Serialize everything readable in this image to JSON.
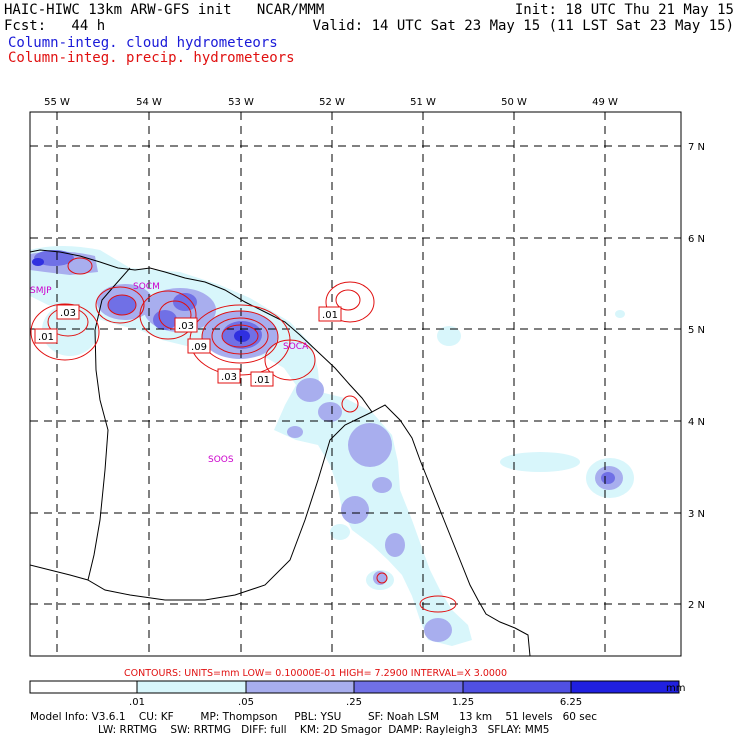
{
  "header": {
    "line1_left": "HAIC-HIWC 13km ARW-GFS init   NCAR/MMM",
    "line1_right": "Init: 18 UTC Thu 21 May 15",
    "line2_left": "Fcst:   44 h",
    "line2_right": "Valid: 14 UTC Sat 23 May 15 (11 LST Sat 23 May 15)",
    "field1": "Column-integ. cloud hydrometeors",
    "field2": "Column-integ. precip. hydrometeors",
    "field1_color": "#1a1ad8",
    "field2_color": "#e01010"
  },
  "map": {
    "lon_labels": [
      "55 W",
      "54 W",
      "53 W",
      "52 W",
      "51 W",
      "50 W",
      "49 W"
    ],
    "lat_labels": [
      "7 N",
      "6 N",
      "5 N",
      "4 N",
      "3 N",
      "2 N"
    ],
    "stations": [
      {
        "id": "SMJP"
      },
      {
        "id": "SOCM"
      },
      {
        "id": "SOCA"
      },
      {
        "id": "SOOS"
      }
    ],
    "contour_labels": [
      ".03",
      ".01",
      ".03",
      ".09",
      ".03",
      ".01",
      ".01"
    ],
    "contour_color": "#e01010",
    "shade_colors": [
      "#d8f6fb",
      "#a8aeee",
      "#7070e6",
      "#3030e0"
    ]
  },
  "contour_info": "CONTOURS:  UNITS=mm  LOW= 0.10000E-01  HIGH=  7.2900     INTERVAL=X  3.0000",
  "colorbar": {
    "ticks": [
      ".01",
      ".05",
      ".25",
      "1.25",
      "6.25",
      "mm"
    ],
    "colors": [
      "#ffffff",
      "#d8f6fb",
      "#a8aeee",
      "#7070e6",
      "#5050e2",
      "#2020e0"
    ]
  },
  "model_info": {
    "line1": "Model Info: V3.6.1    CU: KF        MP: Thompson     PBL: YSU        SF: Noah LSM      13 km    51 levels   60 sec",
    "line2": "LW: RRTMG    SW: RRTMG   DIFF: full    KM: 2D Smagor  DAMP: Rayleigh3   SFLAY: MM5"
  }
}
